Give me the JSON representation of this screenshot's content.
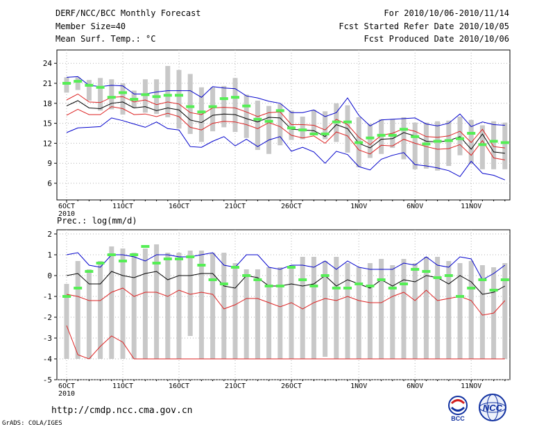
{
  "header": {
    "title": "DERF/NCC/BCC Monthly Forecast",
    "member_size": "Member Size=40",
    "variable": "Mean Surf. Temp.: °C",
    "forecast_period": "For 2010/10/06-2010/11/14",
    "start_date": "Fcst Started Refer Date 2010/10/05",
    "produced_date": "Fcst Produced Date 2010/10/06"
  },
  "footer": {
    "url": "http://cmdp.ncc.cma.gov.cn",
    "credit": "GrADS: COLA/IGES",
    "logo_bcc": "BCC",
    "logo_ncc": "NCC"
  },
  "colors": {
    "ensemble_bar": "#c8c8c8",
    "obs_marker": "#55ee55",
    "mean_line": "#000000",
    "spread_line": "#dd2222",
    "envelope_line": "#0000cc"
  },
  "chart_data": [
    {
      "type": "line",
      "title": "Mean Surf. Temp.: °C",
      "ylabel": "°C",
      "ylim": [
        3.5,
        26
      ],
      "yticks": [
        6,
        9,
        12,
        15,
        18,
        21,
        24
      ],
      "xticks": [
        {
          "day": 1,
          "label": "6OCT",
          "sublabel": "2010"
        },
        {
          "day": 6,
          "label": "11OCT"
        },
        {
          "day": 11,
          "label": "16OCT"
        },
        {
          "day": 16,
          "label": "21OCT"
        },
        {
          "day": 21,
          "label": "26OCT"
        },
        {
          "day": 27,
          "label": "1NOV"
        },
        {
          "day": 32,
          "label": "6NOV"
        },
        {
          "day": 37,
          "label": "11NOV"
        }
      ],
      "days": [
        1,
        2,
        3,
        4,
        5,
        6,
        7,
        8,
        9,
        10,
        11,
        12,
        13,
        14,
        15,
        16,
        17,
        18,
        19,
        20,
        21,
        22,
        23,
        24,
        25,
        26,
        27,
        28,
        29,
        30,
        31,
        32,
        33,
        34,
        35,
        36,
        37,
        38,
        39,
        40
      ],
      "bar_low": [
        19.6,
        20.0,
        18.4,
        16.9,
        17.1,
        16.3,
        17.3,
        16.6,
        16.4,
        15.9,
        14.2,
        13.4,
        12.2,
        13.8,
        14.4,
        13.7,
        12.8,
        11.0,
        10.4,
        11.7,
        12.5,
        12.6,
        13.3,
        12.6,
        12.2,
        10.6,
        8.4,
        9.8,
        10.4,
        11.3,
        9.6,
        8.1,
        8.2,
        7.9,
        8.6,
        10.2,
        8.9,
        8.1,
        8.1,
        8.1
      ],
      "bar_high": [
        21.9,
        21.9,
        21.5,
        21.8,
        21.6,
        21.0,
        19.9,
        21.6,
        21.6,
        23.6,
        23.0,
        22.4,
        20.4,
        20.4,
        20.6,
        21.8,
        19.3,
        18.4,
        17.6,
        17.9,
        16.9,
        16.0,
        17.0,
        16.8,
        18.0,
        17.7,
        15.9,
        14.9,
        15.6,
        15.6,
        15.9,
        15.1,
        15.1,
        15.3,
        15.4,
        16.0,
        15.5,
        14.7,
        15.3,
        15.1
      ],
      "obs": [
        21.0,
        21.3,
        20.7,
        20.4,
        18.9,
        19.6,
        18.6,
        19.3,
        19.0,
        19.2,
        19.2,
        17.5,
        16.7,
        17.5,
        18.7,
        18.9,
        17.6,
        15.6,
        15.3,
        16.9,
        14.3,
        14.0,
        13.4,
        13.4,
        15.2,
        15.2,
        12.1,
        12.8,
        13.2,
        13.2,
        14.1,
        13.0,
        11.9,
        12.3,
        12.4,
        12.7,
        13.5,
        11.8,
        12.3,
        12.1
      ],
      "series": [
        {
          "name": "ensemble max",
          "color": "#0000cc",
          "values": [
            13.6,
            14.3,
            14.4,
            14.5,
            15.8,
            15.4,
            14.9,
            14.4,
            15.2,
            14.2,
            14.0,
            11.5,
            11.4,
            12.3,
            13.0,
            11.6,
            12.6,
            11.5,
            12.5,
            13.0,
            10.8,
            11.4,
            10.7,
            9.0,
            10.8,
            10.3,
            8.5,
            8.0,
            9.6,
            10.2,
            10.6,
            8.8,
            8.6,
            8.3,
            7.9,
            7.0,
            9.3,
            7.5,
            7.2,
            6.5
          ]
        },
        {
          "name": "mean + spread",
          "color": "#dd2222",
          "values": [
            18.5,
            19.4,
            18.2,
            18.1,
            18.9,
            19.0,
            18.2,
            18.5,
            17.8,
            18.2,
            17.9,
            16.6,
            16.3,
            17.3,
            17.4,
            17.3,
            16.7,
            16.0,
            16.6,
            16.7,
            14.8,
            14.8,
            14.7,
            14.0,
            15.6,
            14.8,
            12.9,
            11.8,
            13.2,
            13.5,
            14.2,
            13.8,
            13.0,
            12.9,
            13.1,
            13.8,
            12.1,
            14.1,
            11.5,
            11.3
          ]
        },
        {
          "name": "ensemble mean",
          "color": "#000000",
          "values": [
            17.6,
            18.4,
            17.3,
            17.2,
            18.0,
            18.2,
            17.3,
            17.5,
            16.9,
            17.3,
            17.0,
            15.5,
            15.1,
            16.2,
            16.4,
            16.3,
            15.7,
            15.2,
            15.9,
            15.8,
            14.1,
            14.0,
            13.9,
            13.0,
            14.8,
            14.2,
            12.0,
            11.3,
            12.6,
            12.7,
            13.6,
            13.1,
            12.3,
            12.2,
            12.4,
            13.0,
            11.1,
            13.4,
            10.7,
            10.5
          ]
        },
        {
          "name": "mean - spread",
          "color": "#dd2222",
          "values": [
            16.2,
            17.1,
            16.3,
            16.3,
            17.5,
            17.2,
            16.3,
            16.4,
            16.0,
            16.5,
            16.0,
            14.4,
            14.0,
            15.0,
            15.3,
            15.2,
            14.8,
            14.2,
            15.1,
            14.5,
            13.2,
            12.8,
            13.1,
            12.0,
            13.7,
            13.1,
            11.0,
            10.4,
            11.7,
            11.6,
            12.6,
            12.0,
            11.5,
            11.1,
            11.2,
            11.8,
            10.2,
            12.4,
            9.8,
            9.5
          ]
        },
        {
          "name": "ensemble min",
          "color": "#0000cc",
          "values": [
            21.9,
            22.0,
            20.7,
            20.5,
            20.7,
            20.6,
            19.4,
            19.4,
            19.7,
            19.9,
            19.9,
            19.9,
            18.9,
            20.5,
            20.3,
            20.2,
            19.1,
            18.8,
            18.3,
            18.0,
            16.6,
            16.6,
            17.0,
            16.0,
            16.6,
            18.8,
            16.2,
            14.6,
            15.5,
            15.6,
            15.7,
            15.8,
            14.9,
            14.6,
            15.0,
            16.4,
            14.5,
            15.2,
            14.8,
            14.7
          ]
        }
      ]
    },
    {
      "type": "line",
      "title": "Prec.: log(mm/d)",
      "ylabel": "log(mm/d)",
      "ylim": [
        -5,
        2.2
      ],
      "yticks": [
        -5,
        -4,
        -3,
        -2,
        -1,
        0,
        1,
        2
      ],
      "xticks": [
        {
          "day": 1,
          "label": "6OCT",
          "sublabel": "2010"
        },
        {
          "day": 6,
          "label": "11OCT"
        },
        {
          "day": 11,
          "label": "16OCT"
        },
        {
          "day": 16,
          "label": "21OCT"
        },
        {
          "day": 21,
          "label": "26OCT"
        },
        {
          "day": 27,
          "label": "1NOV"
        },
        {
          "day": 32,
          "label": "6NOV"
        },
        {
          "day": 37,
          "label": "11NOV"
        }
      ],
      "days": [
        1,
        2,
        3,
        4,
        5,
        6,
        7,
        8,
        9,
        10,
        11,
        12,
        13,
        14,
        15,
        16,
        17,
        18,
        19,
        20,
        21,
        22,
        23,
        24,
        25,
        26,
        27,
        28,
        29,
        30,
        31,
        32,
        33,
        34,
        35,
        36,
        37,
        38,
        39,
        40
      ],
      "bar_low": [
        -4.0,
        -4.0,
        -4.0,
        -4.0,
        -4.0,
        -4.0,
        -4.0,
        -4.0,
        -4.0,
        -4.0,
        -4.0,
        -2.9,
        -4.0,
        -4.0,
        -4.0,
        -4.0,
        -4.0,
        -4.0,
        -4.0,
        -4.0,
        -4.0,
        -4.0,
        -4.0,
        -3.9,
        -4.0,
        -4.0,
        -4.0,
        -4.0,
        -4.0,
        -4.0,
        -4.0,
        -4.0,
        -4.0,
        -4.0,
        -4.0,
        -4.0,
        -4.0,
        -4.0,
        -4.0,
        -4.0
      ],
      "bar_high": [
        -0.4,
        0.7,
        0.3,
        0.7,
        1.4,
        1.3,
        1.1,
        1.3,
        1.5,
        1.1,
        1.1,
        1.2,
        1.2,
        1.1,
        1.1,
        0.6,
        0.3,
        0.3,
        0.4,
        0.4,
        0.5,
        0.9,
        0.9,
        0.7,
        0.9,
        0.6,
        0.4,
        0.6,
        0.8,
        0.5,
        0.8,
        0.6,
        0.9,
        0.9,
        0.7,
        0.6,
        0.7,
        0.5,
        0.4,
        0.6
      ],
      "obs": [
        -1.0,
        -0.6,
        0.2,
        0.6,
        1.0,
        0.7,
        1.0,
        1.4,
        0.6,
        0.8,
        0.8,
        0.9,
        0.5,
        -0.2,
        -0.4,
        0.4,
        0.0,
        -0.2,
        -0.5,
        -0.5,
        0.4,
        -0.2,
        -0.5,
        0.0,
        -0.6,
        -0.6,
        -0.4,
        -0.5,
        -0.2,
        -0.6,
        -0.4,
        0.3,
        0.2,
        -0.1,
        0.0,
        -1.0,
        -0.6,
        -0.2,
        -0.7,
        -0.2
      ],
      "series": [
        {
          "name": "ensemble max",
          "color": "#0000cc",
          "values": [
            1.0,
            1.1,
            0.5,
            0.4,
            1.0,
            1.0,
            0.9,
            0.7,
            1.0,
            1.0,
            0.9,
            0.9,
            1.0,
            1.1,
            0.5,
            0.4,
            1.0,
            1.0,
            0.4,
            0.3,
            0.5,
            0.5,
            0.4,
            0.7,
            0.3,
            0.7,
            0.4,
            0.3,
            0.3,
            0.3,
            0.6,
            0.5,
            0.9,
            0.5,
            0.4,
            0.9,
            0.8,
            -0.2,
            0.1,
            0.5
          ]
        },
        {
          "name": "mean + spread",
          "color": "#000000",
          "values": [
            0.0,
            0.1,
            -0.4,
            -0.4,
            0.2,
            0.0,
            -0.1,
            0.1,
            0.2,
            -0.2,
            0.0,
            0.0,
            0.1,
            0.1,
            -0.5,
            -0.6,
            0.0,
            -0.1,
            -0.5,
            -0.5,
            -0.4,
            -0.5,
            -0.4,
            0.0,
            -0.5,
            -0.2,
            -0.4,
            -0.6,
            -0.2,
            -0.5,
            -0.2,
            -0.3,
            0.0,
            -0.1,
            -0.4,
            0.0,
            -0.3,
            -0.9,
            -0.8,
            -0.5
          ]
        },
        {
          "name": "mean - spread",
          "color": "#dd2222",
          "values": [
            -0.9,
            -1.0,
            -1.2,
            -1.2,
            -0.8,
            -0.6,
            -1.0,
            -0.8,
            -0.8,
            -1.0,
            -0.7,
            -0.9,
            -0.8,
            -0.9,
            -1.6,
            -1.4,
            -1.1,
            -1.1,
            -1.3,
            -1.5,
            -1.3,
            -1.6,
            -1.3,
            -1.1,
            -1.2,
            -1.0,
            -1.2,
            -1.3,
            -1.3,
            -1.0,
            -0.8,
            -1.2,
            -0.7,
            -1.2,
            -1.1,
            -1.0,
            -1.2,
            -1.9,
            -1.8,
            -1.2
          ]
        },
        {
          "name": "ensemble min",
          "color": "#dd2222",
          "values": [
            -2.4,
            -3.8,
            -4.0,
            -3.4,
            -2.9,
            -3.2,
            -4.0,
            -4.0,
            -4.0,
            -4.0,
            -4.0,
            -4.0,
            -4.0,
            -4.0,
            -4.0,
            -4.0,
            -4.0,
            -4.0,
            -4.0,
            -4.0,
            -4.0,
            -4.0,
            -4.0,
            -4.0,
            -4.0,
            -4.0,
            -4.0,
            -4.0,
            -4.0,
            -4.0,
            -4.0,
            -4.0,
            -4.0,
            -4.0,
            -4.0,
            -4.0,
            -4.0,
            -4.0,
            -4.0,
            -4.0
          ]
        }
      ]
    }
  ]
}
